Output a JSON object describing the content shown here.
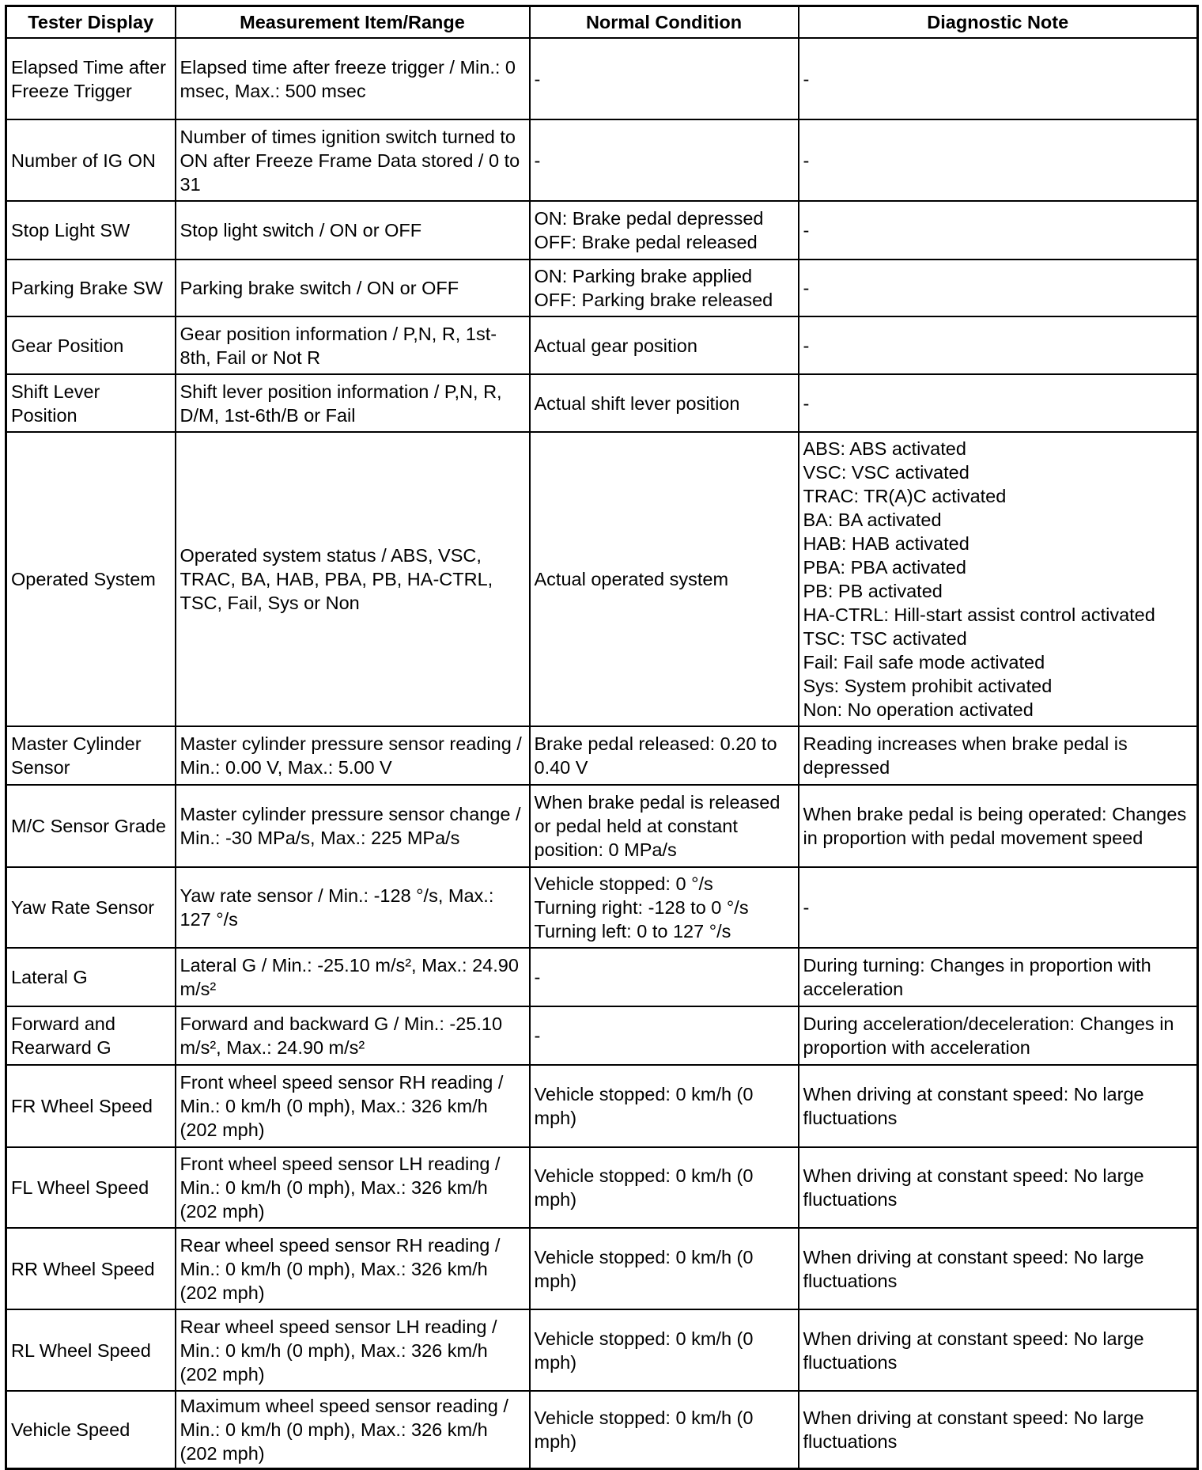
{
  "table": {
    "headers": [
      "Tester Display",
      "Measurement Item/Range",
      "Normal Condition",
      "Diagnostic Note"
    ],
    "rows": [
      [
        "Elapsed Time after Freeze Trigger",
        "Elapsed time after freeze trigger / Min.: 0 msec, Max.: 500 msec",
        "-",
        "-"
      ],
      [
        "Number of IG ON",
        "Number of times ignition switch turned to ON after Freeze Frame Data stored / 0 to 31",
        "-",
        "-"
      ],
      [
        "Stop Light SW",
        "Stop light switch / ON or OFF",
        "ON: Brake pedal depressed\nOFF: Brake pedal released",
        "-"
      ],
      [
        "Parking Brake SW",
        "Parking brake switch / ON or OFF",
        "ON: Parking brake applied\nOFF: Parking brake released",
        "-"
      ],
      [
        "Gear Position",
        "Gear position information / P,N, R, 1st-8th, Fail or Not R",
        "Actual gear position",
        "-"
      ],
      [
        "Shift Lever Position",
        "Shift lever position information / P,N, R, D/M, 1st-6th/B or Fail",
        "Actual shift lever position",
        "-"
      ],
      [
        "Operated System",
        "Operated system status / ABS, VSC, TRAC, BA, HAB, PBA, PB, HA-CTRL, TSC, Fail, Sys or Non",
        "Actual operated system",
        "ABS: ABS activated\nVSC: VSC activated\nTRAC: TR(A)C activated\nBA: BA activated\nHAB: HAB activated\nPBA: PBA activated\nPB: PB activated\nHA-CTRL: Hill-start assist control activated\nTSC: TSC activated\nFail: Fail safe mode activated\nSys: System prohibit activated\nNon: No operation activated"
      ],
      [
        "Master Cylinder Sensor",
        "Master cylinder pressure sensor reading / Min.: 0.00 V, Max.: 5.00 V",
        "Brake pedal released: 0.20 to 0.40 V",
        "Reading increases when brake pedal is depressed"
      ],
      [
        "M/C Sensor Grade",
        "Master cylinder pressure sensor change / Min.: -30 MPa/s, Max.: 225 MPa/s",
        "When brake pedal is released or pedal held at constant position: 0 MPa/s",
        "When brake pedal is being operated: Changes in proportion with pedal movement speed"
      ],
      [
        "Yaw Rate Sensor",
        "Yaw rate sensor / Min.: -128 °/s, Max.: 127 °/s",
        "Vehicle stopped: 0 °/s\nTurning right: -128 to 0 °/s\nTurning left: 0 to 127 °/s",
        "-"
      ],
      [
        "Lateral G",
        "Lateral G / Min.: -25.10 m/s², Max.: 24.90 m/s²",
        "-",
        "During turning: Changes in proportion with acceleration"
      ],
      [
        "Forward and Rearward G",
        "Forward and backward G / Min.: -25.10 m/s², Max.: 24.90 m/s²",
        "-",
        "During acceleration/deceleration: Changes in proportion with acceleration"
      ],
      [
        "FR Wheel Speed",
        "Front wheel speed sensor RH reading / Min.: 0 km/h (0 mph), Max.: 326 km/h (202 mph)",
        "Vehicle stopped: 0 km/h (0 mph)",
        "When driving at constant speed: No large fluctuations"
      ],
      [
        "FL Wheel Speed",
        "Front wheel speed sensor LH reading / Min.: 0 km/h (0 mph), Max.: 326 km/h (202 mph)",
        "Vehicle stopped: 0 km/h (0 mph)",
        "When driving at constant speed: No large fluctuations"
      ],
      [
        "RR Wheel Speed",
        "Rear wheel speed sensor RH reading / Min.: 0 km/h (0 mph), Max.: 326 km/h (202 mph)",
        "Vehicle stopped: 0 km/h (0 mph)",
        "When driving at constant speed: No large fluctuations"
      ],
      [
        "RL Wheel Speed",
        "Rear wheel speed sensor LH reading / Min.: 0 km/h (0 mph), Max.: 326 km/h (202 mph)",
        "Vehicle stopped: 0 km/h (0 mph)",
        "When driving at constant speed: No large fluctuations"
      ],
      [
        "Vehicle Speed",
        "Maximum wheel speed sensor reading / Min.: 0 km/h (0 mph), Max.: 326 km/h (202 mph)",
        "Vehicle stopped: 0 km/h (0 mph)",
        "When driving at constant speed: No large fluctuations"
      ]
    ]
  }
}
